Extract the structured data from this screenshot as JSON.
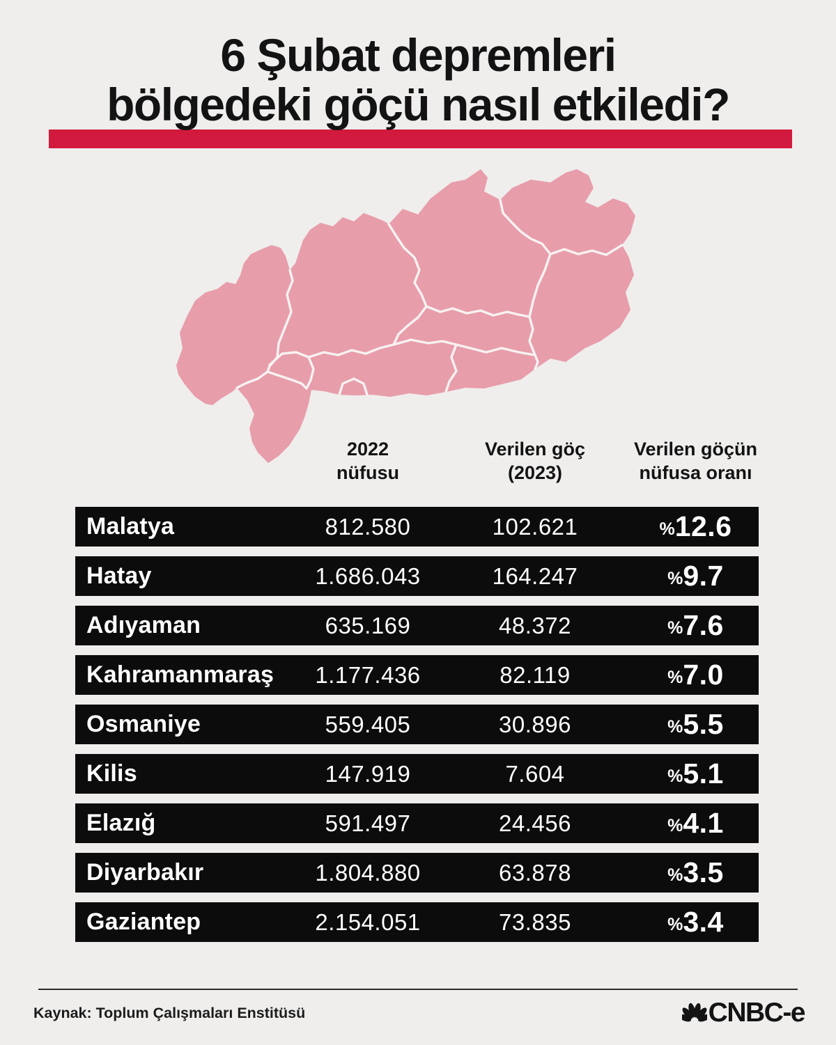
{
  "title": {
    "line1": "6 Şubat depremleri",
    "line2": "bölgedeki göçü nasıl etkiledi?"
  },
  "table": {
    "headers": [
      {
        "line1": "2022",
        "line2": "nüfusu"
      },
      {
        "line1": "Verilen göç",
        "line2": "(2023)"
      },
      {
        "line1": "Verilen göçün",
        "line2": "nüfusa oranı"
      }
    ],
    "percent_prefix": "%",
    "rows": [
      {
        "province": "Malatya",
        "population": "812.580",
        "migration": "102.621",
        "percent": "12.6"
      },
      {
        "province": "Hatay",
        "population": "1.686.043",
        "migration": "164.247",
        "percent": "9.7"
      },
      {
        "province": "Adıyaman",
        "population": "635.169",
        "migration": "48.372",
        "percent": "7.6"
      },
      {
        "province": "Kahramanmaraş",
        "population": "1.177.436",
        "migration": "82.119",
        "percent": "7.0"
      },
      {
        "province": "Osmaniye",
        "population": "559.405",
        "migration": "30.896",
        "percent": "5.5"
      },
      {
        "province": "Kilis",
        "population": "147.919",
        "migration": "7.604",
        "percent": "5.1"
      },
      {
        "province": "Elazığ",
        "population": "591.497",
        "migration": "24.456",
        "percent": "4.1"
      },
      {
        "province": "Diyarbakır",
        "population": "1.804.880",
        "migration": "63.878",
        "percent": "3.5"
      },
      {
        "province": "Gaziantep",
        "population": "2.154.051",
        "migration": "73.835",
        "percent": "3.4"
      }
    ]
  },
  "chart_data": {
    "type": "table",
    "title": "6 Şubat depremleri bölgedeki göçü nasıl etkiledi?",
    "columns": [
      "İl",
      "2022 nüfusu",
      "Verilen göç (2023)",
      "Verilen göçün nüfusa oranı (%)"
    ],
    "rows": [
      [
        "Malatya",
        812580,
        102621,
        12.6
      ],
      [
        "Hatay",
        1686043,
        164247,
        9.7
      ],
      [
        "Adıyaman",
        635169,
        48372,
        7.6
      ],
      [
        "Kahramanmaraş",
        1177436,
        82119,
        7.0
      ],
      [
        "Osmaniye",
        559405,
        30896,
        5.5
      ],
      [
        "Kilis",
        147919,
        7604,
        5.1
      ],
      [
        "Elazığ",
        591497,
        24456,
        4.1
      ],
      [
        "Diyarbakır",
        1804880,
        63878,
        3.5
      ],
      [
        "Gaziantep",
        2154051,
        73835,
        3.4
      ]
    ],
    "source": "Kaynak: Toplum Çalışmaları Enstitüsü"
  },
  "footer": {
    "source": "Kaynak: Toplum Çalışmaları Enstitüsü",
    "brand": "CNBC-e"
  },
  "colors": {
    "bg": "#efeeed",
    "accent": "#d21a3e",
    "ink": "#131313",
    "row_bg": "#0c0c0c",
    "row_text": "#ffffff",
    "pink": "#e89daa",
    "map_border": "#f7f2f2"
  }
}
